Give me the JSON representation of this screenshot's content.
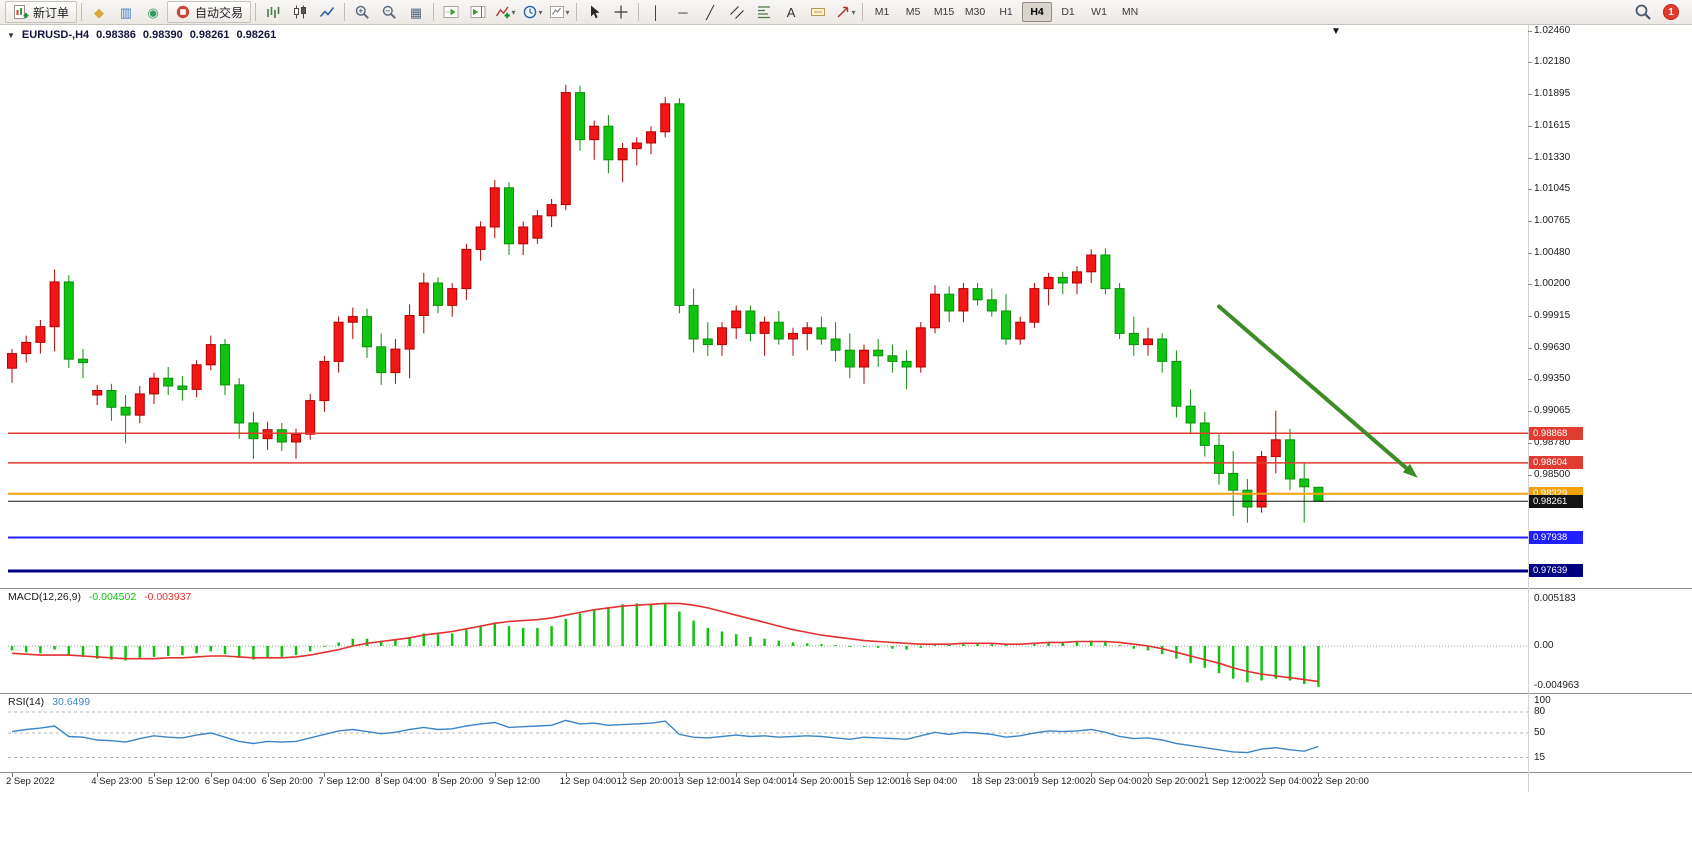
{
  "toolbar": {
    "items": [
      {
        "type": "button",
        "name": "new-order-button",
        "shape": "neworder",
        "label": "新订单"
      },
      {
        "type": "sep"
      },
      {
        "type": "icon",
        "name": "metaeditor-icon",
        "glyph": "◆",
        "color": "#dba63a"
      },
      {
        "type": "icon",
        "name": "data-window-icon",
        "glyph": "▥",
        "color": "#4a7ebb"
      },
      {
        "type": "icon",
        "name": "signals-icon",
        "glyph": "◉",
        "color": "#2f9e5f"
      },
      {
        "type": "button",
        "name": "autotrading-button",
        "shape": "autotrade",
        "label": "自动交易"
      },
      {
        "type": "sep"
      },
      {
        "type": "icon",
        "name": "bar-chart-icon",
        "shape": "bars"
      },
      {
        "type": "icon",
        "name": "candlestick-chart-icon",
        "shape": "candles"
      },
      {
        "type": "icon",
        "name": "line-chart-icon",
        "shape": "linechart"
      },
      {
        "type": "sep"
      },
      {
        "type": "icon",
        "name": "zoom-in-icon",
        "shape": "zoomin"
      },
      {
        "type": "icon",
        "name": "zoom-out-icon",
        "shape": "zoomout"
      },
      {
        "type": "icon",
        "name": "tile-windows-icon",
        "glyph": "▦",
        "color": "#55677d"
      },
      {
        "type": "sep"
      },
      {
        "type": "icon",
        "name": "auto-scroll-icon",
        "shape": "autoscroll"
      },
      {
        "type": "icon",
        "name": "chart-shift-icon",
        "shape": "chartshift"
      },
      {
        "type": "icon",
        "name": "indicators-icon",
        "shape": "indicators",
        "dropdown": true
      },
      {
        "type": "icon",
        "name": "periods-icon",
        "shape": "clock",
        "dropdown": true
      },
      {
        "type": "icon",
        "name": "templates-icon",
        "shape": "template",
        "dropdown": true
      },
      {
        "type": "sep"
      },
      {
        "type": "icon",
        "name": "cursor-icon",
        "shape": "cursor"
      },
      {
        "type": "icon",
        "name": "crosshair-icon",
        "shape": "crosshair"
      },
      {
        "type": "sep"
      },
      {
        "type": "icon",
        "name": "vertical-line-icon",
        "glyph": "│",
        "color": "#333333"
      },
      {
        "type": "icon",
        "name": "horizontal-line-icon",
        "glyph": "─",
        "color": "#333333"
      },
      {
        "type": "icon",
        "name": "trendline-icon",
        "glyph": "╱",
        "color": "#333333"
      },
      {
        "type": "icon",
        "name": "equidistant-channel-icon",
        "shape": "channel"
      },
      {
        "type": "icon",
        "name": "fibonacci-icon",
        "shape": "fibo"
      },
      {
        "type": "icon",
        "name": "text-icon",
        "glyph": "A",
        "color": "#333333"
      },
      {
        "type": "icon",
        "name": "text-label-icon",
        "shape": "textlabel"
      },
      {
        "type": "icon",
        "name": "arrows-icon",
        "shape": "arrows",
        "dropdown": true
      },
      {
        "type": "sep"
      }
    ],
    "timeframes": [
      "M1",
      "M5",
      "M15",
      "M30",
      "H1",
      "H4",
      "D1",
      "W1",
      "MN"
    ],
    "active_timeframe": "H4",
    "notification_count": "1"
  },
  "chart": {
    "symbol_header": {
      "collapse_glyph": "▼",
      "symbol": "EURUSD-,H4",
      "open": "0.98386",
      "high": "0.98390",
      "low": "0.98261",
      "close": "0.98261"
    },
    "price_axis": {
      "max": 1.0246,
      "min": 0.97639,
      "labels": [
        "1.02460",
        "1.02180",
        "1.01895",
        "1.01615",
        "1.01330",
        "1.01045",
        "1.00765",
        "1.00480",
        "1.00200",
        "0.99915",
        "0.99630",
        "0.99350",
        "0.99065",
        "0.98780",
        "0.98500"
      ]
    },
    "colors": {
      "up": "#f21616",
      "up_stroke": "#b30000",
      "down": "#0fc40f",
      "down_stroke": "#0a8f0a"
    },
    "candles": [
      [
        0.9945,
        0.9962,
        0.9932,
        0.9958
      ],
      [
        0.9958,
        0.9974,
        0.995,
        0.9968
      ],
      [
        0.9968,
        0.9988,
        0.9958,
        0.9982
      ],
      [
        0.9982,
        1.0033,
        0.996,
        1.0022
      ],
      [
        1.0022,
        1.0028,
        0.9945,
        0.9953
      ],
      [
        0.9953,
        0.9962,
        0.9936,
        0.995
      ],
      [
        0.9921,
        0.993,
        0.9912,
        0.9925
      ],
      [
        0.9925,
        0.9931,
        0.9898,
        0.991
      ],
      [
        0.991,
        0.9921,
        0.9878,
        0.9903
      ],
      [
        0.9903,
        0.9929,
        0.9896,
        0.9922
      ],
      [
        0.9922,
        0.9941,
        0.9913,
        0.9936
      ],
      [
        0.9936,
        0.9946,
        0.9921,
        0.9929
      ],
      [
        0.9929,
        0.9938,
        0.9916,
        0.9926
      ],
      [
        0.9926,
        0.9952,
        0.9919,
        0.9948
      ],
      [
        0.9948,
        0.9974,
        0.9943,
        0.9966
      ],
      [
        0.9966,
        0.9971,
        0.9921,
        0.993
      ],
      [
        0.993,
        0.9936,
        0.9882,
        0.9896
      ],
      [
        0.9896,
        0.9906,
        0.9864,
        0.9882
      ],
      [
        0.9882,
        0.9897,
        0.9872,
        0.989
      ],
      [
        0.989,
        0.9896,
        0.9871,
        0.9879
      ],
      [
        0.9879,
        0.9891,
        0.9864,
        0.9886
      ],
      [
        0.9886,
        0.9922,
        0.9881,
        0.9916
      ],
      [
        0.9916,
        0.9956,
        0.9906,
        0.9951
      ],
      [
        0.9951,
        0.9991,
        0.9941,
        0.9986
      ],
      [
        0.9986,
        0.9999,
        0.9971,
        0.9991
      ],
      [
        0.9991,
        0.9998,
        0.9954,
        0.9964
      ],
      [
        0.9964,
        0.9976,
        0.993,
        0.9941
      ],
      [
        0.9941,
        0.9971,
        0.9931,
        0.9962
      ],
      [
        0.9962,
        1.0002,
        0.9936,
        0.9992
      ],
      [
        0.9992,
        1.003,
        0.9976,
        1.0021
      ],
      [
        1.0021,
        1.0026,
        0.9994,
        1.0001
      ],
      [
        1.0001,
        1.0021,
        0.9991,
        1.0016
      ],
      [
        1.0016,
        1.0056,
        1.0006,
        1.0051
      ],
      [
        1.0051,
        1.0076,
        1.0041,
        1.0071
      ],
      [
        1.0071,
        1.0113,
        1.0061,
        1.0106
      ],
      [
        1.0106,
        1.0111,
        1.0046,
        1.0056
      ],
      [
        1.0056,
        1.0076,
        1.0046,
        1.0071
      ],
      [
        1.0061,
        1.0086,
        1.0056,
        1.0081
      ],
      [
        1.0081,
        1.0096,
        1.0071,
        1.0091
      ],
      [
        1.0091,
        1.0198,
        1.0086,
        1.0191
      ],
      [
        1.0191,
        1.0197,
        1.0139,
        1.0149
      ],
      [
        1.0149,
        1.0166,
        1.0131,
        1.0161
      ],
      [
        1.0161,
        1.0171,
        1.0119,
        1.0131
      ],
      [
        1.0131,
        1.0146,
        1.0111,
        1.0141
      ],
      [
        1.0141,
        1.0151,
        1.0126,
        1.0146
      ],
      [
        1.0146,
        1.0161,
        1.0136,
        1.0156
      ],
      [
        1.0156,
        1.0187,
        1.0151,
        1.0181
      ],
      [
        1.0181,
        1.0186,
        0.9994,
        1.0001
      ],
      [
        1.0001,
        1.0016,
        0.9959,
        0.9971
      ],
      [
        0.9971,
        0.9986,
        0.9956,
        0.9966
      ],
      [
        0.9966,
        0.9986,
        0.9956,
        0.9981
      ],
      [
        0.9981,
        1.0001,
        0.9971,
        0.9996
      ],
      [
        0.9996,
        1.0001,
        0.9969,
        0.9976
      ],
      [
        0.9976,
        0.9991,
        0.9956,
        0.9986
      ],
      [
        0.9986,
        0.9996,
        0.9966,
        0.9971
      ],
      [
        0.9971,
        0.9981,
        0.9956,
        0.9976
      ],
      [
        0.9976,
        0.9986,
        0.9961,
        0.9981
      ],
      [
        0.9981,
        0.9991,
        0.9966,
        0.9971
      ],
      [
        0.9971,
        0.9986,
        0.9951,
        0.9961
      ],
      [
        0.9961,
        0.9976,
        0.9936,
        0.9946
      ],
      [
        0.9946,
        0.9966,
        0.9931,
        0.9961
      ],
      [
        0.9961,
        0.9971,
        0.9946,
        0.9956
      ],
      [
        0.9956,
        0.9966,
        0.9941,
        0.9951
      ],
      [
        0.9951,
        0.9961,
        0.9926,
        0.9946
      ],
      [
        0.9946,
        0.9986,
        0.9941,
        0.9981
      ],
      [
        0.9981,
        1.0019,
        0.9976,
        1.0011
      ],
      [
        1.0011,
        1.0018,
        0.9986,
        0.9996
      ],
      [
        0.9996,
        1.0021,
        0.9986,
        1.0016
      ],
      [
        1.0016,
        1.0021,
        1.0001,
        1.0006
      ],
      [
        1.0006,
        1.0016,
        0.9991,
        0.9996
      ],
      [
        0.9996,
        1.0011,
        0.9966,
        0.9971
      ],
      [
        0.9971,
        0.9991,
        0.9966,
        0.9986
      ],
      [
        0.9986,
        1.0021,
        0.9981,
        1.0016
      ],
      [
        1.0016,
        1.003,
        1.0001,
        1.0026
      ],
      [
        1.0026,
        1.0031,
        1.0011,
        1.0021
      ],
      [
        1.0021,
        1.0036,
        1.0011,
        1.0031
      ],
      [
        1.0031,
        1.0051,
        1.0021,
        1.0046
      ],
      [
        1.0046,
        1.0052,
        1.0011,
        1.0016
      ],
      [
        1.0016,
        1.0021,
        0.9971,
        0.9976
      ],
      [
        0.9976,
        0.9991,
        0.9956,
        0.9966
      ],
      [
        0.9966,
        0.9981,
        0.9956,
        0.9971
      ],
      [
        0.9971,
        0.9976,
        0.9941,
        0.9951
      ],
      [
        0.9951,
        0.9961,
        0.9901,
        0.9911
      ],
      [
        0.9911,
        0.9926,
        0.9886,
        0.9896
      ],
      [
        0.9896,
        0.9906,
        0.9866,
        0.9876
      ],
      [
        0.9876,
        0.9886,
        0.9841,
        0.9851
      ],
      [
        0.9851,
        0.9871,
        0.9813,
        0.9836
      ],
      [
        0.9836,
        0.9846,
        0.9807,
        0.9821
      ],
      [
        0.9821,
        0.9871,
        0.9816,
        0.9866
      ],
      [
        0.9866,
        0.9907,
        0.9851,
        0.9881
      ],
      [
        0.9881,
        0.9891,
        0.9836,
        0.9846
      ],
      [
        0.9846,
        0.9861,
        0.9807,
        0.9839
      ],
      [
        0.98386,
        0.9839,
        0.98261,
        0.98261
      ]
    ],
    "hlines": [
      {
        "price": 0.98868,
        "label": "0.98868",
        "line": "#e03c31",
        "tag": "#e03c31",
        "width": 1.5
      },
      {
        "price": 0.98604,
        "label": "0.98604",
        "line": "#e03c31",
        "tag": "#e03c31",
        "width": 1.5
      },
      {
        "price": 0.98329,
        "label": "0.98329",
        "line": "#f2a10e",
        "tag": "#f2a10e",
        "width": 2
      },
      {
        "price": 0.98261,
        "label": "0.98261",
        "line": "#141414",
        "tag": "#141414",
        "width": 1
      },
      {
        "price": 0.97938,
        "label": "0.97938",
        "line": "#1f1fff",
        "tag": "#1f1fff",
        "width": 2
      },
      {
        "price": 0.97639,
        "label": "0.97639",
        "line": "#000080",
        "tag": "#000080",
        "width": 3
      }
    ],
    "annotations": {
      "arrow": {
        "from_i": 85,
        "from_price": 1.0,
        "to_i": 99,
        "to_price": 0.9847,
        "color": "#3e8c28"
      },
      "marker_glyph": "▼"
    }
  },
  "macd": {
    "title": "MACD(12,26,9)",
    "value_main": "-0.004502",
    "value_signal": "-0.003937",
    "colors": {
      "hist": "#0fc40f",
      "signal": "#e33030"
    },
    "axis": [
      {
        "text": "0.005183",
        "value": 0.005183
      },
      {
        "text": "0.00",
        "value": 0
      },
      {
        "text": "-0.004963",
        "value": -0.004963
      }
    ],
    "hist": [
      -0.0005,
      -0.0007,
      -0.0008,
      -0.0004,
      -0.001,
      -0.0012,
      -0.0014,
      -0.0015,
      -0.0016,
      -0.0014,
      -0.0012,
      -0.0011,
      -0.001,
      -0.0008,
      -0.0006,
      -0.0009,
      -0.0013,
      -0.0015,
      -0.0013,
      -0.0012,
      -0.001,
      -0.0006,
      -0.0001,
      0.0004,
      0.0008,
      0.0008,
      0.0006,
      0.0007,
      0.001,
      0.0014,
      0.0013,
      0.0014,
      0.0018,
      0.0022,
      0.0026,
      0.0022,
      0.002,
      0.002,
      0.0022,
      0.003,
      0.0036,
      0.004,
      0.0043,
      0.0046,
      0.0047,
      0.0046,
      0.0047,
      0.0038,
      0.0028,
      0.002,
      0.0016,
      0.0013,
      0.001,
      0.0008,
      0.0006,
      0.0004,
      0.0003,
      0.0002,
      0.0001,
      -0.0001,
      -0.0001,
      -0.0002,
      -0.0003,
      -0.0004,
      -0.0002,
      0.0001,
      0.0002,
      0.0003,
      0.0003,
      0.0002,
      0.0001,
      0.0,
      0.0002,
      0.0004,
      0.0004,
      0.0005,
      0.0006,
      0.0005,
      0.0001,
      -0.0003,
      -0.0005,
      -0.0009,
      -0.0014,
      -0.0019,
      -0.0024,
      -0.003,
      -0.0036,
      -0.004,
      -0.0038,
      -0.0036,
      -0.0038,
      -0.0042,
      -0.0045
    ],
    "signal": [
      -0.0008,
      -0.0009,
      -0.001,
      -0.001,
      -0.001,
      -0.0011,
      -0.0012,
      -0.0013,
      -0.0014,
      -0.0014,
      -0.0014,
      -0.0013,
      -0.0013,
      -0.0012,
      -0.0011,
      -0.0011,
      -0.0012,
      -0.0013,
      -0.0013,
      -0.0013,
      -0.0012,
      -0.001,
      -0.0007,
      -0.0004,
      0.0,
      0.0003,
      0.0005,
      0.0007,
      0.0009,
      0.0012,
      0.0014,
      0.0016,
      0.0019,
      0.0022,
      0.0025,
      0.0027,
      0.0028,
      0.0029,
      0.0031,
      0.0034,
      0.0037,
      0.004,
      0.0042,
      0.0044,
      0.0045,
      0.0046,
      0.0047,
      0.0047,
      0.0045,
      0.0042,
      0.0038,
      0.0034,
      0.003,
      0.0026,
      0.0022,
      0.0018,
      0.0015,
      0.0012,
      0.001,
      0.0008,
      0.0006,
      0.0005,
      0.0004,
      0.0003,
      0.0002,
      0.0002,
      0.0002,
      0.0003,
      0.0003,
      0.0003,
      0.0002,
      0.0002,
      0.0003,
      0.0004,
      0.0004,
      0.0005,
      0.0005,
      0.0005,
      0.0004,
      0.0002,
      0.0,
      -0.0003,
      -0.0007,
      -0.0011,
      -0.0015,
      -0.0019,
      -0.0024,
      -0.0028,
      -0.0031,
      -0.0033,
      -0.0035,
      -0.0037,
      -0.0039
    ]
  },
  "rsi": {
    "title": "RSI(14)",
    "value": "30.6499",
    "color": "#3d85c6",
    "axis": [
      {
        "text": "100",
        "value": 100,
        "line": false
      },
      {
        "text": "80",
        "value": 80,
        "line": true
      },
      {
        "text": "50",
        "value": 50,
        "line": true
      },
      {
        "text": "15",
        "value": 15,
        "line": true
      }
    ],
    "values": [
      52,
      55,
      57,
      60,
      45,
      44,
      40,
      39,
      37,
      42,
      46,
      44,
      43,
      47,
      50,
      44,
      38,
      35,
      38,
      37,
      38,
      43,
      48,
      53,
      55,
      52,
      49,
      51,
      55,
      58,
      55,
      56,
      60,
      63,
      65,
      58,
      59,
      60,
      61,
      68,
      63,
      64,
      61,
      62,
      63,
      64,
      67,
      48,
      44,
      43,
      45,
      47,
      45,
      46,
      44,
      45,
      46,
      45,
      43,
      41,
      44,
      43,
      42,
      41,
      46,
      51,
      48,
      51,
      50,
      48,
      44,
      46,
      50,
      53,
      52,
      53,
      55,
      51,
      45,
      42,
      43,
      40,
      35,
      32,
      29,
      26,
      23,
      22,
      27,
      29,
      26,
      24,
      30.65
    ]
  },
  "time_axis": {
    "labels": [
      {
        "i": 0,
        "text": "2 Sep 2022"
      },
      {
        "i": 6,
        "text": "4 Sep 23:00"
      },
      {
        "i": 10,
        "text": "5 Sep 12:00"
      },
      {
        "i": 14,
        "text": "6 Sep 04:00"
      },
      {
        "i": 18,
        "text": "6 Sep 20:00"
      },
      {
        "i": 22,
        "text": "7 Sep 12:00"
      },
      {
        "i": 26,
        "text": "8 Sep 04:00"
      },
      {
        "i": 30,
        "text": "8 Sep 20:00"
      },
      {
        "i": 34,
        "text": "9 Sep 12:00"
      },
      {
        "i": 39,
        "text": "12 Sep 04:00"
      },
      {
        "i": 43,
        "text": "12 Sep 20:00"
      },
      {
        "i": 47,
        "text": "13 Sep 12:00"
      },
      {
        "i": 51,
        "text": "14 Sep 04:00"
      },
      {
        "i": 55,
        "text": "14 Sep 20:00"
      },
      {
        "i": 59,
        "text": "15 Sep 12:00"
      },
      {
        "i": 63,
        "text": "16 Sep 04:00"
      },
      {
        "i": 68,
        "text": "18 Sep 23:00"
      },
      {
        "i": 72,
        "text": "19 Sep 12:00"
      },
      {
        "i": 76,
        "text": "20 Sep 04:00"
      },
      {
        "i": 80,
        "text": "20 Sep 20:00"
      },
      {
        "i": 84,
        "text": "21 Sep 12:00"
      },
      {
        "i": 88,
        "text": "22 Sep 04:00"
      },
      {
        "i": 92,
        "text": "22 Sep 20:00"
      }
    ]
  }
}
